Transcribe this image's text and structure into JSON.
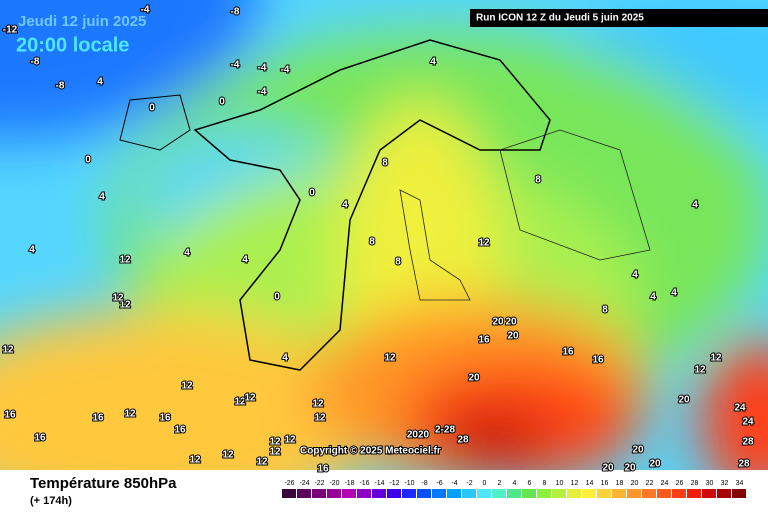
{
  "header": {
    "date": "Jeudi 12 juin 2025",
    "time": "20:00 locale",
    "run": "Run ICON 12 Z du Jeudi 5 juin 2025"
  },
  "copyright": "Copyright © 2025 Meteociel.fr",
  "footer": {
    "title": "Température 850hPa",
    "lead": "(+ 174h)"
  },
  "colorbar": {
    "ticks": [
      -26,
      -24,
      -22,
      -20,
      -18,
      -16,
      -14,
      -12,
      -10,
      -8,
      -6,
      -4,
      -2,
      0,
      2,
      4,
      6,
      8,
      10,
      12,
      14,
      16,
      18,
      20,
      22,
      24,
      26,
      28,
      30,
      32,
      34
    ],
    "colors": [
      "#3c003c",
      "#5a005a",
      "#780078",
      "#960096",
      "#b400b4",
      "#8c00c8",
      "#6400dc",
      "#3c00f0",
      "#1e28ff",
      "#0050ff",
      "#0078ff",
      "#00a0ff",
      "#28c8ff",
      "#50e6ff",
      "#50f0c8",
      "#50e68c",
      "#64e650",
      "#8cf03c",
      "#b4f03c",
      "#e6f03c",
      "#fff03c",
      "#ffd23c",
      "#ffb432",
      "#ff962d",
      "#ff7828",
      "#ff5a1e",
      "#ff3c14",
      "#f01e0a",
      "#d20a0a",
      "#aa0000",
      "#820000"
    ]
  },
  "contour_labels": [
    "-8",
    "-4",
    "-12",
    "-8",
    "-8",
    "-4",
    "-4",
    "-4",
    "-4",
    "4",
    "0",
    "0",
    "0",
    "4",
    "4",
    "4",
    "4",
    "12",
    "12",
    "0",
    "0",
    "4",
    "4",
    "8",
    "8",
    "8",
    "4",
    "12",
    "8",
    "4",
    "4",
    "4",
    "4",
    "8",
    "12",
    "12",
    "16",
    "16",
    "16",
    "20",
    "20",
    "20",
    "12",
    "20",
    "12",
    "12",
    "12",
    "16",
    "16",
    "12",
    "16",
    "16",
    "16",
    "12",
    "12",
    "12",
    "12",
    "12",
    "12",
    "12",
    "12",
    "16",
    "2020",
    "2-28",
    "28",
    "20",
    "20",
    "20",
    "20",
    "24",
    "24",
    "28",
    "28",
    "20",
    "12",
    "12"
  ]
}
